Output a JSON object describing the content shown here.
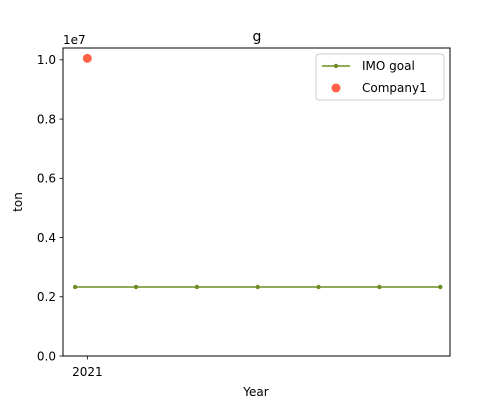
{
  "chart_data": {
    "type": "line",
    "title": "g",
    "xlabel": "Year",
    "ylabel": "ton",
    "y_offset_label": "1e7",
    "xlim": [
      2020.8,
      2023.98
    ],
    "ylim": [
      0,
      10400000
    ],
    "y_ticks": [
      {
        "value": 0,
        "label": "0.0"
      },
      {
        "value": 2000000,
        "label": "0.2"
      },
      {
        "value": 4000000,
        "label": "0.4"
      },
      {
        "value": 6000000,
        "label": "0.6"
      },
      {
        "value": 8000000,
        "label": "0.8"
      },
      {
        "value": 10000000,
        "label": "1.0"
      }
    ],
    "x_ticks": [
      {
        "value": 2021,
        "label": "2021"
      }
    ],
    "grid": false,
    "legend_position": "top-right",
    "series": [
      {
        "name": "IMO goal",
        "kind": "line",
        "color": "#6b8e23",
        "x": [
          2020.9,
          2021.4,
          2021.9,
          2022.4,
          2022.9,
          2023.4,
          2023.9
        ],
        "y": [
          2330000,
          2330000,
          2330000,
          2330000,
          2330000,
          2330000,
          2330000
        ]
      },
      {
        "name": "Company1",
        "kind": "scatter",
        "color": "#ff6347",
        "x": [
          2021
        ],
        "y": [
          10050000
        ]
      }
    ]
  }
}
